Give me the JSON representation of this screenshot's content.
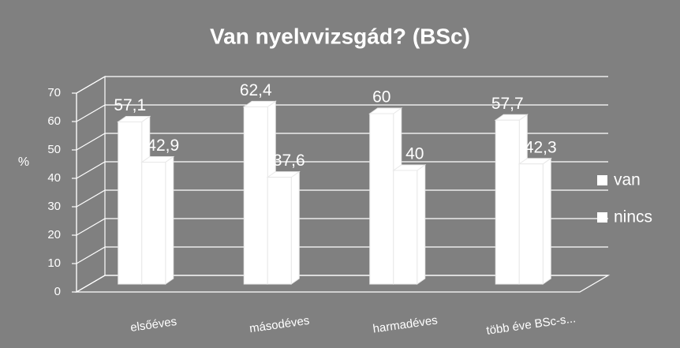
{
  "chart_data": {
    "type": "bar3d",
    "title": "Van nyelvvizsgád? (BSc)",
    "y_label": "%",
    "categories": [
      "elsőéves",
      "másodéves",
      "harmadéves",
      "több éve BSc-s..."
    ],
    "series": [
      {
        "name": "van",
        "color": "#ffffff",
        "values": [
          57.1,
          62.4,
          60,
          57.7
        ],
        "value_labels": [
          "57,1",
          "62,4",
          "60",
          "57,7"
        ]
      },
      {
        "name": "nincs",
        "color": "#ffffff",
        "values": [
          42.9,
          37.6,
          40,
          42.3
        ],
        "value_labels": [
          "42,9",
          "37,6",
          "40",
          "42,3"
        ]
      }
    ],
    "ylim": [
      0,
      70
    ],
    "yticks": [
      0,
      10,
      20,
      30,
      40,
      50,
      60,
      70
    ],
    "grid": true,
    "legend": "right"
  }
}
